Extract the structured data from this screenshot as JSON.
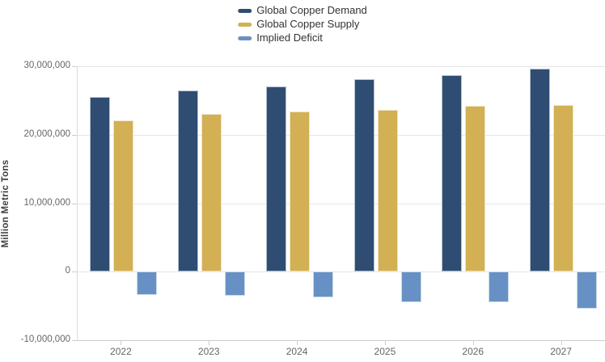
{
  "chart_data": {
    "type": "bar",
    "title": "",
    "categories": [
      "2022",
      "2023",
      "2024",
      "2025",
      "2026",
      "2027"
    ],
    "series": [
      {
        "name": "Global Copper Demand",
        "color": "#2f4d73",
        "values": [
          25500000,
          26500000,
          27100000,
          28100000,
          28700000,
          29700000
        ]
      },
      {
        "name": "Global Copper Supply",
        "color": "#d2b053",
        "values": [
          22100000,
          23000000,
          23400000,
          23600000,
          24200000,
          24300000
        ]
      },
      {
        "name": "Implied Deficit",
        "color": "#6791c4",
        "values": [
          -3400000,
          -3500000,
          -3700000,
          -4500000,
          -4500000,
          -5400000
        ]
      }
    ],
    "xlabel": "",
    "ylabel": "Million Metric Tons",
    "ylim": [
      -10000000,
      30000000
    ],
    "yticks": [
      {
        "value": 30000000,
        "label": "30,000,000"
      },
      {
        "value": 20000000,
        "label": "20,000,000"
      },
      {
        "value": 10000000,
        "label": "10,000,000"
      },
      {
        "value": 0,
        "label": "0"
      },
      {
        "value": -10000000,
        "label": "-10,000,000"
      }
    ],
    "grid": true,
    "legend_position": "top-center",
    "colors": {
      "gridline": "#e6e6e6",
      "axis_line": "#cccccc",
      "tick_label": "#666666",
      "legend_text": "#333333",
      "background": "#ffffff"
    }
  }
}
